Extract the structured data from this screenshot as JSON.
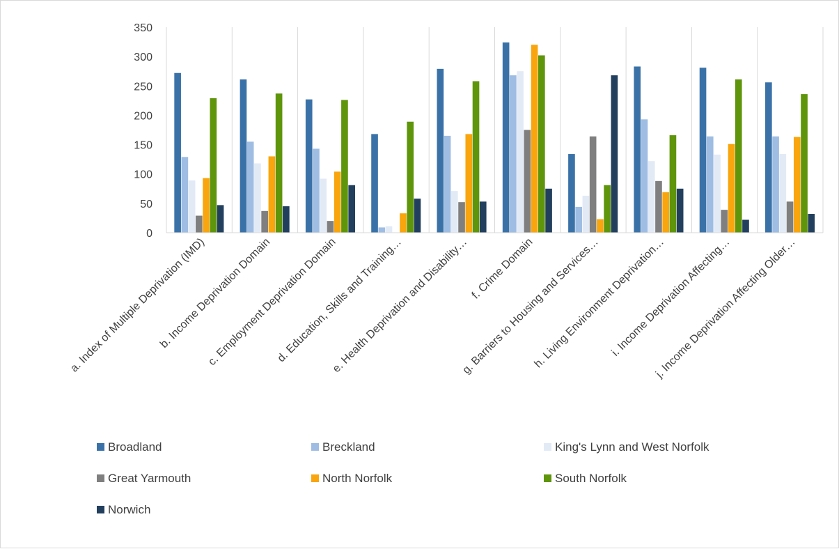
{
  "chart_data": {
    "type": "bar",
    "title": "",
    "xlabel": "",
    "ylabel": "",
    "ylim": [
      0,
      350
    ],
    "yticks": [
      0,
      50,
      100,
      150,
      200,
      250,
      300,
      350
    ],
    "grid": "vertical category gridlines",
    "legend_position": "bottom",
    "categories": [
      "a. Index of Multiple Deprivation (IMD)",
      "b. Income Deprivation Domain",
      "c. Employment Deprivation Domain",
      "d. Education, Skills and Training…",
      "e. Health Deprivation and Disability…",
      "f. Crime Domain",
      "g. Barriers to Housing and Services…",
      "h. Living Environment Deprivation…",
      "i. Income Deprivation Affecting…",
      "j. Income Deprivation Affecting Older…"
    ],
    "series": [
      {
        "name": "Broadland",
        "color": "#3a72a8",
        "values": [
          272,
          261,
          227,
          168,
          279,
          324,
          134,
          283,
          281,
          256
        ]
      },
      {
        "name": "Breckland",
        "color": "#9fbde3",
        "values": [
          129,
          155,
          143,
          9,
          165,
          268,
          44,
          193,
          164,
          164
        ]
      },
      {
        "name": "King's Lynn and West Norfolk",
        "color": "#e2eaf6",
        "values": [
          89,
          118,
          92,
          11,
          71,
          275,
          63,
          122,
          133,
          134
        ]
      },
      {
        "name": "Great Yarmouth",
        "color": "#7f7f7f",
        "values": [
          29,
          37,
          20,
          0,
          52,
          175,
          164,
          88,
          39,
          53
        ]
      },
      {
        "name": "North Norfolk",
        "color": "#f9a50d",
        "values": [
          93,
          130,
          104,
          33,
          168,
          320,
          23,
          69,
          151,
          163
        ]
      },
      {
        "name": "South Norfolk",
        "color": "#5e950b",
        "values": [
          229,
          237,
          226,
          189,
          258,
          302,
          81,
          166,
          261,
          236
        ]
      },
      {
        "name": "Norwich",
        "color": "#223f5e",
        "values": [
          47,
          45,
          81,
          58,
          53,
          75,
          268,
          75,
          22,
          32
        ]
      }
    ]
  }
}
